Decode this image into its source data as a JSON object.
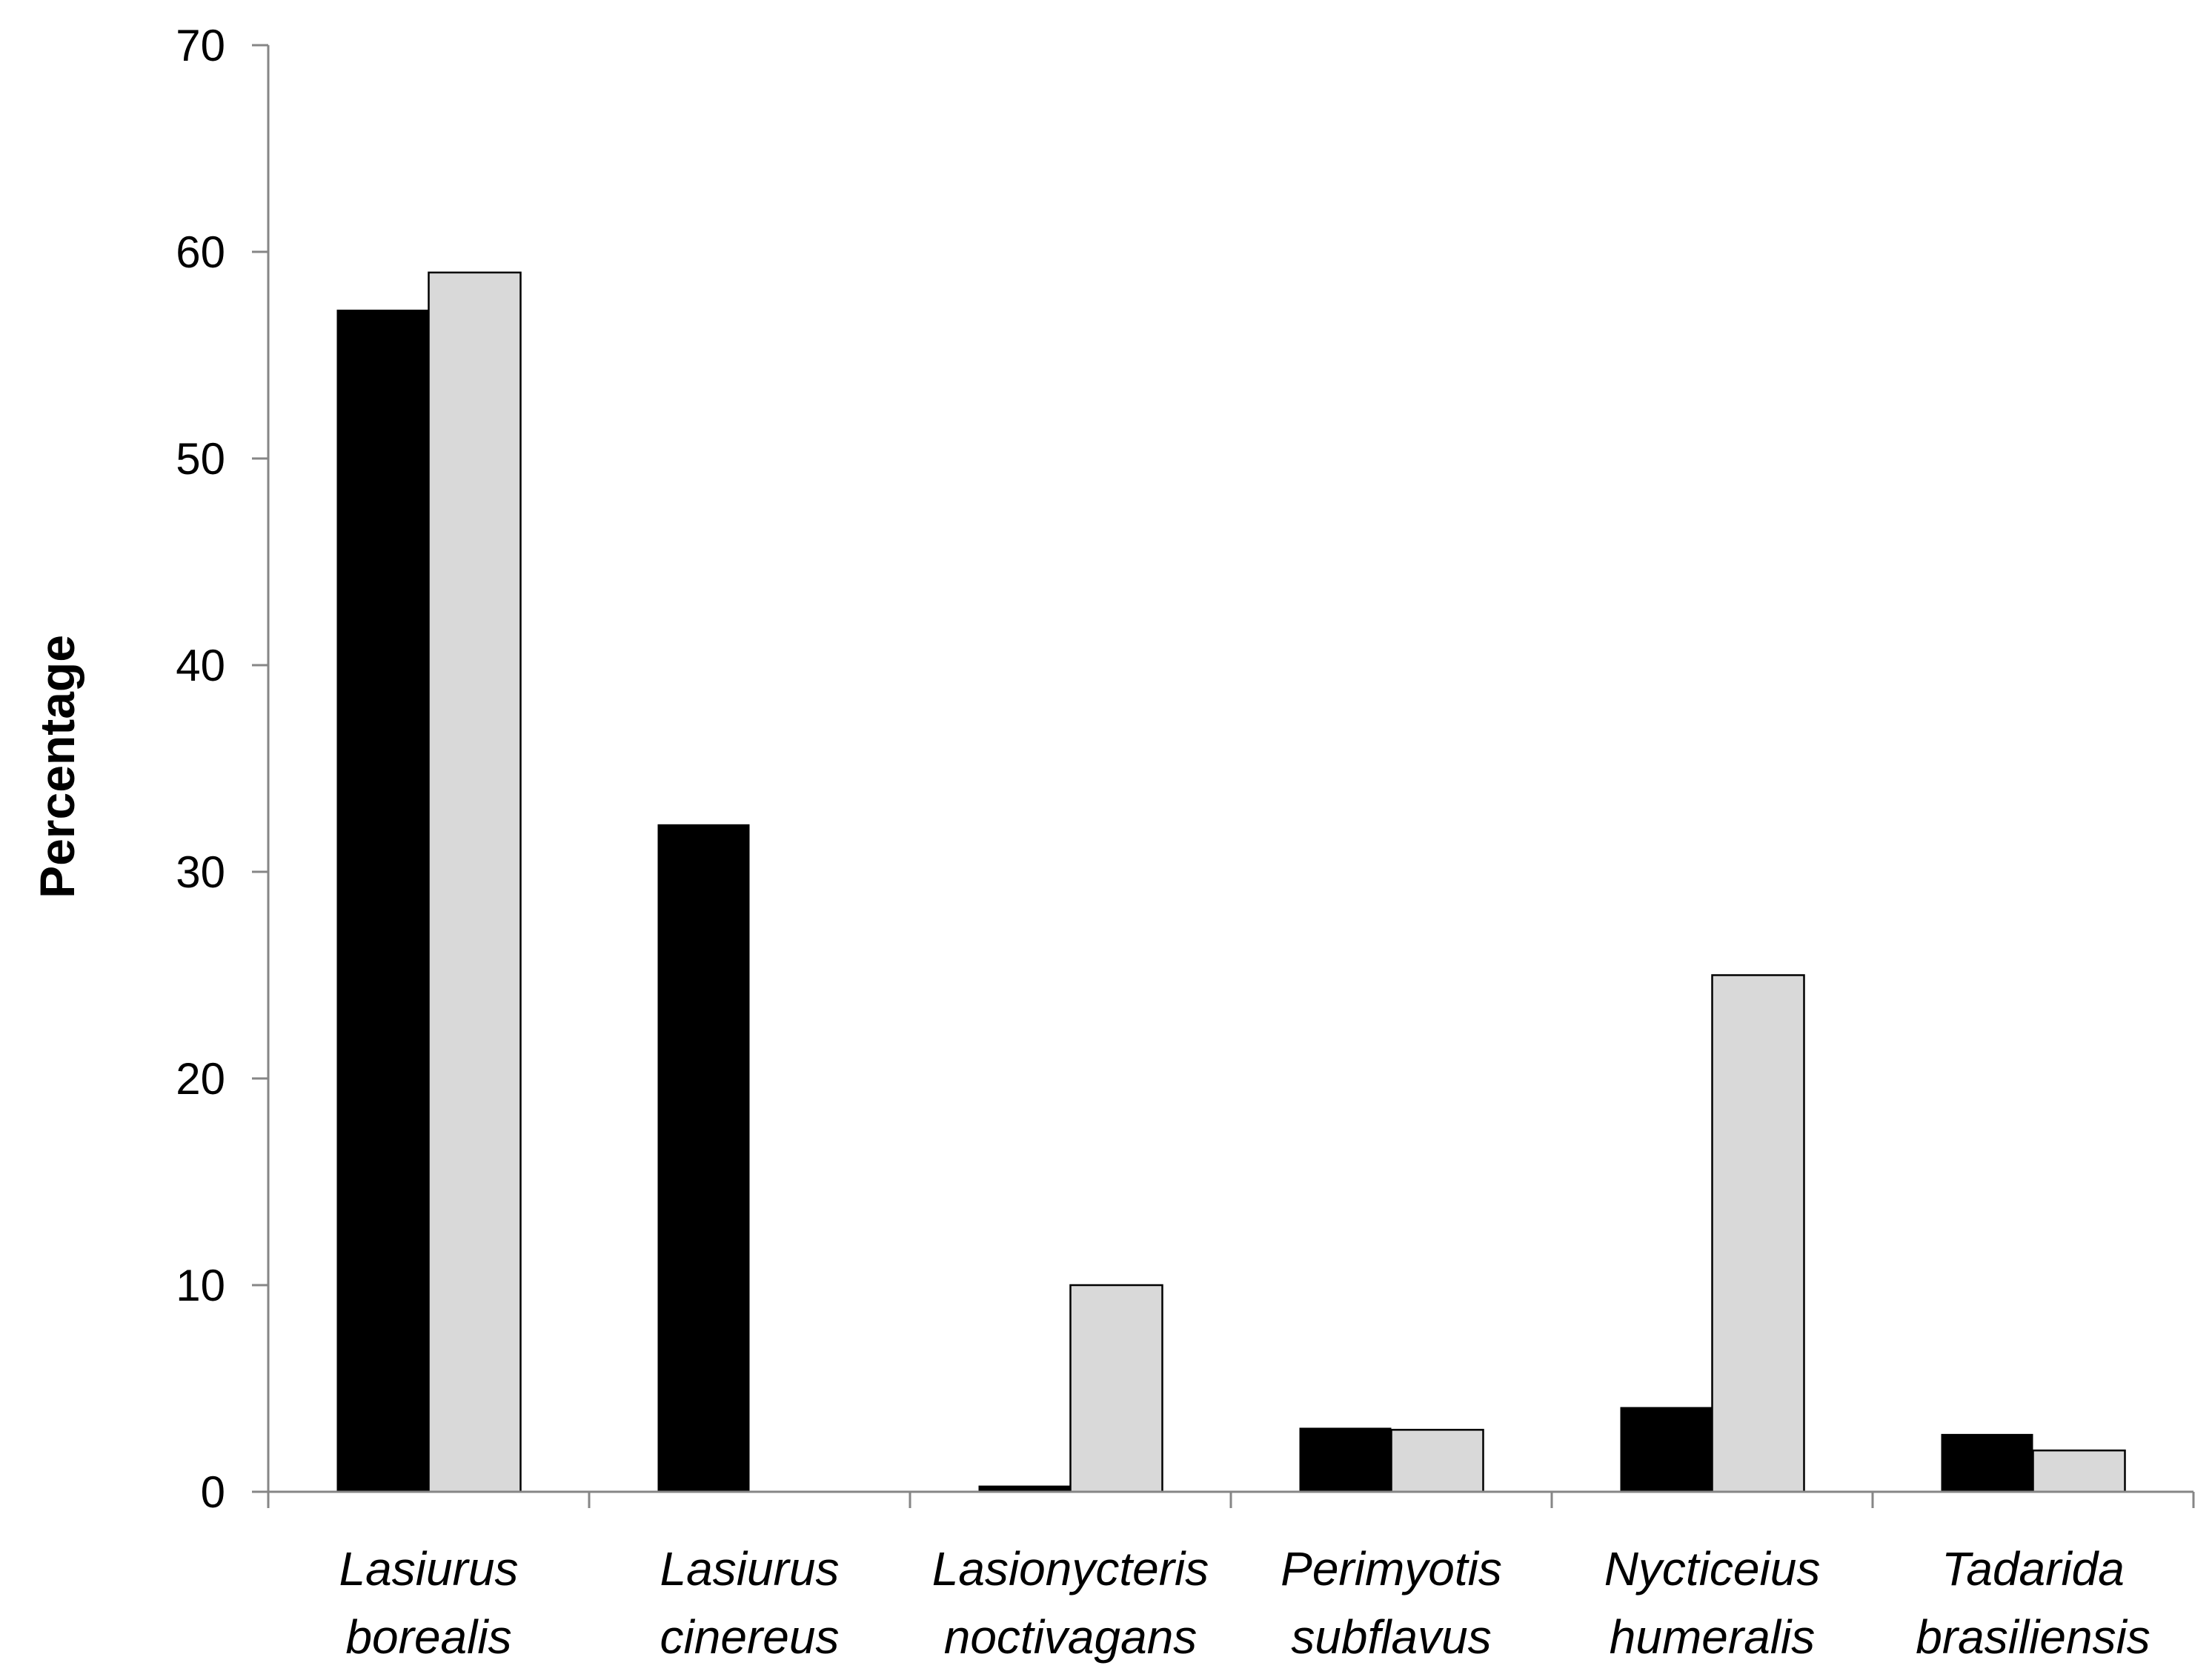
{
  "chart_data": {
    "type": "bar",
    "title": "",
    "xlabel": "",
    "ylabel": "Percentage",
    "ylim": [
      0,
      70
    ],
    "yticks": [
      0,
      10,
      20,
      30,
      40,
      50,
      60,
      70
    ],
    "grid": false,
    "legend": "none",
    "categories": [
      [
        "Lasiurus",
        "borealis"
      ],
      [
        "Lasiurus",
        "cinereus"
      ],
      [
        "Lasionycteris",
        "noctivagans"
      ],
      [
        "Perimyotis",
        "subflavus"
      ],
      [
        "Nycticeius",
        "humeralis"
      ],
      [
        "Tadarida",
        "brasiliensis"
      ]
    ],
    "series": [
      {
        "color": "#000000",
        "values": [
          57.2,
          32.3,
          0.3,
          3.1,
          4.1,
          2.8
        ]
      },
      {
        "color": "#d9d9d9",
        "values": [
          59.0,
          0,
          10.0,
          3.0,
          25.0,
          2.0
        ]
      }
    ]
  }
}
